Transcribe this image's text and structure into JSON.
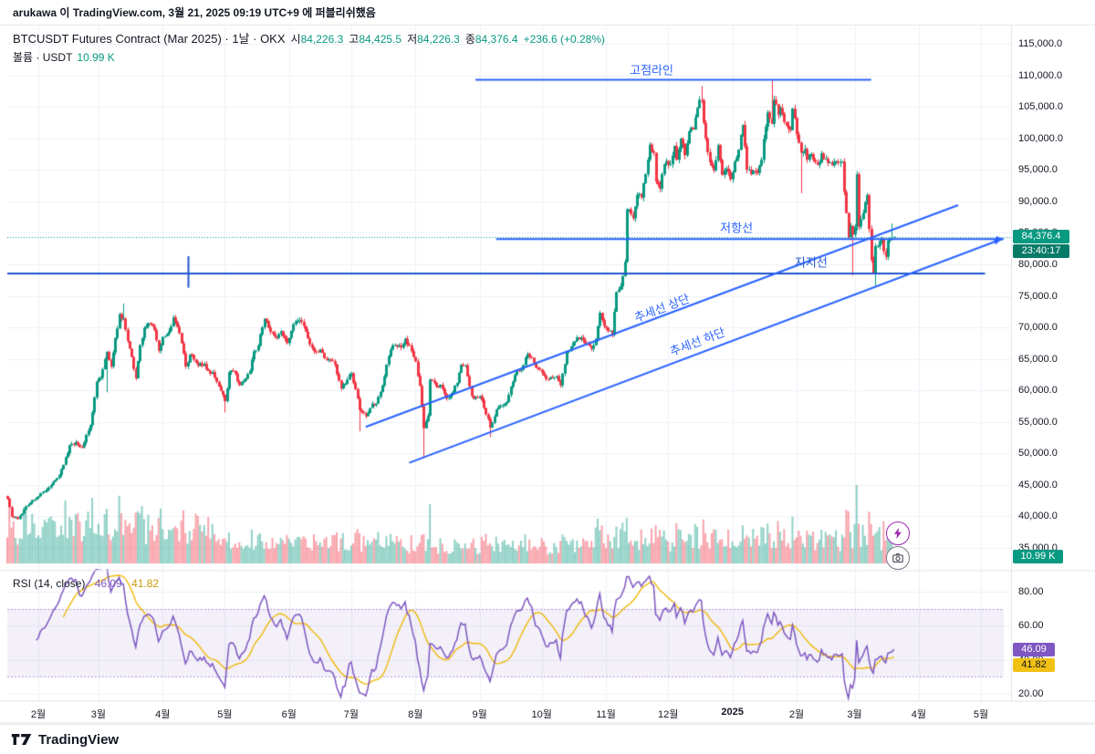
{
  "publish_bar": {
    "text": "arukawa 이 TradingView.com, 3월 21, 2025 09:19 UTC+9 에 퍼블리쉬했음"
  },
  "header": {
    "symbol_title": "BTCUSDT Futures Contract (Mar 2025) · 1날 · OKX",
    "ohlc": {
      "open_label": "시",
      "open": "84,226.3",
      "high_label": "고",
      "high": "84,425.5",
      "low_label": "저",
      "low": "84,226.3",
      "close_label": "종",
      "close": "84,376.4",
      "change": "+236.6 (+0.28%)"
    },
    "volume_label": "볼륨 · USDT",
    "volume_value": "10.99 K"
  },
  "badges": {
    "last_price": "84,376.4",
    "countdown": "23:40:17",
    "volume": "10.99 K",
    "rsi": "46.09",
    "rsi_ma": "41.82"
  },
  "rsi_legend": {
    "title": "RSI (14, close)",
    "value": "46.09",
    "ma_value": "41.82"
  },
  "footer": {
    "logo_text": "TradingView"
  },
  "icons": {
    "boost": "lightning-icon",
    "snapshot": "camera-icon"
  },
  "colors": {
    "up": "#089981",
    "down": "#f23645",
    "accent_blue": "#2962ff",
    "support_blue": "#2156cd",
    "rsi_line": "#7e57c2",
    "rsi_ma": "#f0b90b",
    "badge_green": "#089981",
    "grid": "#eef1f7",
    "border": "#e0e3eb",
    "text": "#131722",
    "last_price_dotted": "#089981"
  },
  "price_scale": {
    "ticks": [
      "115,000.0",
      "110,000.0",
      "105,000.0",
      "100,000.0",
      "95,000.0",
      "90,000.0",
      "85,000.0",
      "80,000.0",
      "75,000.0",
      "70,000.0",
      "65,000.0",
      "60,000.0",
      "55,000.0",
      "50,000.0",
      "45,000.0",
      "40,000.0",
      "35,000.0"
    ]
  },
  "rsi_scale": {
    "ticks": [
      "80.00",
      "60.00",
      "40.00",
      "20.00"
    ],
    "values": [
      80,
      60,
      40,
      20
    ]
  },
  "chart_data": {
    "type": "candlestick",
    "title": "BTCUSDT Futures Contract (Mar 2025)",
    "interval": "1날",
    "exchange": "OKX",
    "last_bar": {
      "open": 84226.3,
      "high": 84425.5,
      "low": 84226.3,
      "close": 84376.4,
      "change": 236.6,
      "change_pct": 0.28,
      "volume_usdt": "10.99 K"
    },
    "y_axis": {
      "min": 35000,
      "max": 115000,
      "step": 5000
    },
    "x_axis": {
      "total_days": 481,
      "labels": [
        {
          "text": "2월",
          "day": 15
        },
        {
          "text": "3월",
          "day": 44
        },
        {
          "text": "4월",
          "day": 75
        },
        {
          "text": "5월",
          "day": 105
        },
        {
          "text": "6월",
          "day": 136
        },
        {
          "text": "7월",
          "day": 166
        },
        {
          "text": "8월",
          "day": 197
        },
        {
          "text": "9월",
          "day": 228
        },
        {
          "text": "10월",
          "day": 258
        },
        {
          "text": "11월",
          "day": 289
        },
        {
          "text": "12월",
          "day": 319
        },
        {
          "text": "2025",
          "day": 350,
          "bold": true
        },
        {
          "text": "2월",
          "day": 381
        },
        {
          "text": "3월",
          "day": 409
        },
        {
          "text": "4월",
          "day": 440
        },
        {
          "text": "5월",
          "day": 470
        }
      ]
    },
    "price_anchors": [
      [
        0,
        42800
      ],
      [
        2,
        40000
      ],
      [
        5,
        39600
      ],
      [
        9,
        41600
      ],
      [
        14,
        43000
      ],
      [
        20,
        44600
      ],
      [
        24,
        46100
      ],
      [
        27,
        48200
      ],
      [
        30,
        51300
      ],
      [
        33,
        51800
      ],
      [
        36,
        51000
      ],
      [
        40,
        54500
      ],
      [
        43,
        61400
      ],
      [
        45,
        62000
      ],
      [
        48,
        66100
      ],
      [
        50,
        63800
      ],
      [
        52,
        68300
      ],
      [
        54,
        72100
      ],
      [
        56,
        71400
      ],
      [
        58,
        67800
      ],
      [
        60,
        65300
      ],
      [
        62,
        61900
      ],
      [
        64,
        67200
      ],
      [
        66,
        69900
      ],
      [
        68,
        70700
      ],
      [
        71,
        69600
      ],
      [
        73,
        66300
      ],
      [
        75,
        68500
      ],
      [
        78,
        69400
      ],
      [
        80,
        71600
      ],
      [
        83,
        69100
      ],
      [
        86,
        63800
      ],
      [
        88,
        65700
      ],
      [
        90,
        64900
      ],
      [
        92,
        63900
      ],
      [
        95,
        64200
      ],
      [
        97,
        63100
      ],
      [
        99,
        62900
      ],
      [
        102,
        60600
      ],
      [
        105,
        58300
      ],
      [
        107,
        62900
      ],
      [
        109,
        63100
      ],
      [
        112,
        60800
      ],
      [
        114,
        61500
      ],
      [
        117,
        63100
      ],
      [
        119,
        66200
      ],
      [
        121,
        67100
      ],
      [
        124,
        71400
      ],
      [
        127,
        69300
      ],
      [
        130,
        68300
      ],
      [
        132,
        69400
      ],
      [
        135,
        67500
      ],
      [
        138,
        70500
      ],
      [
        141,
        71100
      ],
      [
        144,
        69300
      ],
      [
        146,
        67300
      ],
      [
        148,
        66200
      ],
      [
        151,
        66500
      ],
      [
        153,
        65100
      ],
      [
        155,
        64900
      ],
      [
        158,
        64100
      ],
      [
        161,
        60300
      ],
      [
        164,
        61700
      ],
      [
        166,
        62700
      ],
      [
        168,
        60200
      ],
      [
        170,
        56900
      ],
      [
        171,
        56600
      ],
      [
        173,
        55900
      ],
      [
        176,
        57900
      ],
      [
        178,
        57900
      ],
      [
        181,
        60800
      ],
      [
        183,
        64100
      ],
      [
        185,
        66500
      ],
      [
        187,
        67200
      ],
      [
        190,
        66800
      ],
      [
        192,
        68200
      ],
      [
        195,
        66200
      ],
      [
        197,
        64600
      ],
      [
        199,
        60700
      ],
      [
        201,
        54000
      ],
      [
        203,
        56000
      ],
      [
        204,
        61700
      ],
      [
        207,
        60600
      ],
      [
        209,
        60900
      ],
      [
        212,
        58700
      ],
      [
        214,
        59400
      ],
      [
        217,
        61200
      ],
      [
        219,
        64100
      ],
      [
        221,
        64000
      ],
      [
        224,
        59100
      ],
      [
        226,
        58900
      ],
      [
        228,
        59100
      ],
      [
        231,
        56200
      ],
      [
        233,
        54100
      ],
      [
        236,
        57000
      ],
      [
        238,
        57600
      ],
      [
        241,
        58100
      ],
      [
        243,
        60600
      ],
      [
        246,
        63200
      ],
      [
        248,
        63300
      ],
      [
        251,
        65800
      ],
      [
        253,
        65200
      ],
      [
        255,
        63600
      ],
      [
        257,
        63300
      ],
      [
        260,
        61800
      ],
      [
        262,
        62100
      ],
      [
        265,
        62300
      ],
      [
        267,
        60800
      ],
      [
        270,
        66100
      ],
      [
        272,
        67000
      ],
      [
        275,
        68400
      ],
      [
        277,
        68400
      ],
      [
        280,
        67400
      ],
      [
        282,
        66600
      ],
      [
        284,
        68200
      ],
      [
        286,
        72300
      ],
      [
        288,
        70200
      ],
      [
        290,
        69400
      ],
      [
        292,
        68800
      ],
      [
        294,
        75600
      ],
      [
        296,
        76500
      ],
      [
        298,
        80400
      ],
      [
        299,
        88700
      ],
      [
        301,
        88000
      ],
      [
        302,
        87300
      ],
      [
        304,
        91000
      ],
      [
        306,
        90600
      ],
      [
        308,
        94300
      ],
      [
        310,
        99000
      ],
      [
        312,
        97700
      ],
      [
        313,
        93100
      ],
      [
        315,
        92000
      ],
      [
        317,
        95900
      ],
      [
        318,
        96400
      ],
      [
        320,
        95900
      ],
      [
        322,
        98800
      ],
      [
        323,
        96600
      ],
      [
        325,
        99900
      ],
      [
        327,
        97300
      ],
      [
        329,
        101100
      ],
      [
        331,
        101400
      ],
      [
        334,
        106100
      ],
      [
        335,
        106000
      ],
      [
        337,
        100000
      ],
      [
        338,
        97800
      ],
      [
        340,
        95600
      ],
      [
        341,
        94900
      ],
      [
        343,
        98900
      ],
      [
        345,
        94200
      ],
      [
        347,
        95200
      ],
      [
        349,
        93500
      ],
      [
        350,
        94600
      ],
      [
        352,
        96900
      ],
      [
        353,
        98200
      ],
      [
        355,
        102100
      ],
      [
        357,
        95000
      ],
      [
        359,
        94300
      ],
      [
        361,
        94600
      ],
      [
        362,
        94500
      ],
      [
        364,
        96600
      ],
      [
        365,
        99900
      ],
      [
        367,
        104100
      ],
      [
        369,
        102300
      ],
      [
        370,
        106100
      ],
      [
        372,
        103700
      ],
      [
        373,
        104800
      ],
      [
        375,
        102600
      ],
      [
        376,
        102000
      ],
      [
        378,
        101300
      ],
      [
        379,
        104700
      ],
      [
        381,
        100600
      ],
      [
        383,
        97700
      ],
      [
        385,
        98300
      ],
      [
        386,
        96600
      ],
      [
        388,
        97500
      ],
      [
        391,
        95800
      ],
      [
        393,
        97600
      ],
      [
        396,
        96100
      ],
      [
        398,
        95700
      ],
      [
        401,
        96100
      ],
      [
        403,
        96300
      ],
      [
        404,
        91500
      ],
      [
        406,
        84300
      ],
      [
        407,
        86100
      ],
      [
        408,
        84700
      ],
      [
        409,
        86000
      ],
      [
        410,
        94300
      ],
      [
        411,
        86000
      ],
      [
        412,
        87200
      ],
      [
        414,
        89900
      ],
      [
        415,
        91000
      ],
      [
        417,
        80700
      ],
      [
        418,
        78600
      ],
      [
        419,
        82900
      ],
      [
        421,
        83700
      ],
      [
        422,
        83900
      ],
      [
        424,
        81200
      ],
      [
        425,
        83800
      ],
      [
        426,
        84000
      ],
      [
        427,
        84226
      ],
      [
        428,
        84376.4
      ]
    ],
    "wick_overrides": [
      {
        "day": 48,
        "low": 59700
      },
      {
        "day": 56,
        "high": 73800
      },
      {
        "day": 105,
        "low": 56500
      },
      {
        "day": 170,
        "low": 53500
      },
      {
        "day": 201,
        "low": 49200
      },
      {
        "day": 233,
        "low": 52600
      },
      {
        "day": 335,
        "high": 108300
      },
      {
        "day": 369,
        "high": 109350
      },
      {
        "day": 383,
        "low": 91300
      },
      {
        "day": 408,
        "low": 78200
      },
      {
        "day": 419,
        "low": 76600
      },
      {
        "day": 427,
        "high": 86500
      }
    ],
    "last_price_line": 84376.4,
    "annotations": [
      {
        "label": "고점라인",
        "type": "hline",
        "price": 109300,
        "d1": 226,
        "d2": 417,
        "label_day": 311,
        "label_price": 111000,
        "angle": 0,
        "color": "#2962ff"
      },
      {
        "label": "저항선",
        "type": "hline",
        "price": 84000,
        "d1": 236,
        "d2": 481,
        "arrow": true,
        "label_day": 352,
        "label_price": 85900,
        "angle": 0,
        "color": "#2962ff"
      },
      {
        "label": "지지선",
        "type": "hline",
        "price": 78550,
        "d1": 0,
        "d2": 472,
        "label_day": 388,
        "label_price": 80400,
        "angle": 0,
        "color": "#2156cd"
      },
      {
        "label": "추세선 상단",
        "type": "trend",
        "d1": 173,
        "p1": 54200,
        "d2": 459,
        "p2": 89400,
        "label_day": 316,
        "label_price": 73200,
        "angle": -20.5,
        "color": "#2962ff"
      },
      {
        "label": "추세선 하단",
        "type": "trend",
        "d1": 194,
        "p1": 48500,
        "d2": 480,
        "p2": 84000,
        "arrow": true,
        "label_day": 333,
        "label_price": 67800,
        "angle": -20.7,
        "color": "#2962ff"
      },
      {
        "label": "",
        "type": "vline",
        "day": 87,
        "p1": 81300,
        "p2": 76300,
        "color": "#2156cd"
      }
    ],
    "rsi": {
      "period": 14,
      "source": "close",
      "last": 46.09,
      "ma_last": 41.82,
      "upper_band": 70,
      "lower_band": 30,
      "scale_ticks": [
        80,
        60,
        40,
        20
      ]
    }
  }
}
